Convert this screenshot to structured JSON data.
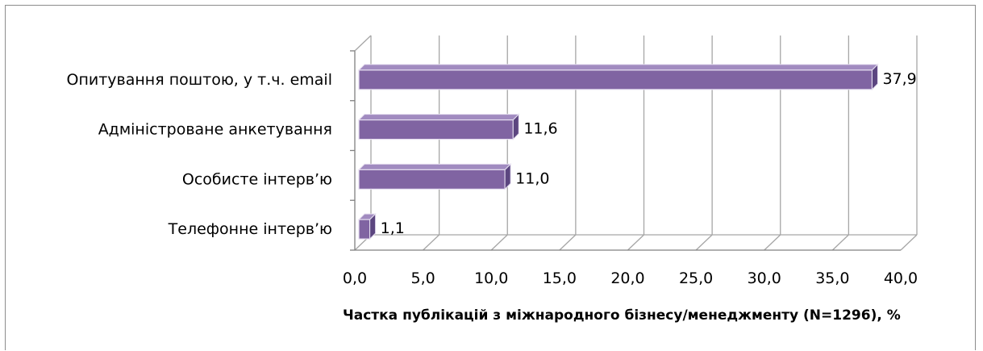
{
  "chart_data": {
    "type": "bar",
    "orientation": "horizontal",
    "categories": [
      "Опитування поштою, у т.ч. email",
      "Адміністроване анкетування",
      "Особисте інтерв’ю",
      "Телефонне інтерв’ю"
    ],
    "values": [
      37.9,
      11.6,
      11.0,
      1.1
    ],
    "value_labels": [
      "37,9",
      "11,6",
      "11,0",
      "1,1"
    ],
    "x_ticks": [
      "0,0",
      "5,0",
      "10,0",
      "15,0",
      "20,0",
      "25,0",
      "30,0",
      "35,0",
      "40,0"
    ],
    "xlabel": "Частка публікацій з міжнародного бізнесу/менеджменту (N=1296), %",
    "ylabel": "",
    "xlim": [
      0,
      40
    ],
    "grid": true,
    "legend": "none",
    "style": "3d",
    "colors": {
      "bar_front": "#8064a2",
      "bar_top": "#a18bc0",
      "bar_side": "#5c4680",
      "bar_edge": "#e6dff0",
      "grid": "#a6a6a6",
      "axis": "#808080"
    }
  }
}
